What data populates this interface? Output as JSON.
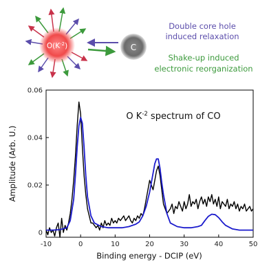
{
  "schematic": {
    "atom_o_label": "O",
    "atom_o_sup": "(K",
    "atom_o_sup2": "-2",
    "atom_o_close": ")",
    "atom_c_label": "C",
    "legend_relaxation_line1": "Double core hole",
    "legend_relaxation_line2": "induced relaxation",
    "legend_shakeup_line1": "Shake-up induced",
    "legend_shakeup_line2": "electronic reorganization",
    "colors": {
      "relaxation": "#5b4dab",
      "shakeup": "#3c9a3c",
      "red_arrow": "#c8324a",
      "o_atom": "#f04a4a",
      "c_atom": "#6b6b6b"
    }
  },
  "chart_data": {
    "type": "line",
    "title": "O K",
    "title_sup": "-2",
    "title_rest": " spectrum of  CO",
    "xlabel": "Binding energy - DCIP (eV)",
    "ylabel": "Amplitude (Arb. U.)",
    "xlim": [
      -10,
      50
    ],
    "ylim": [
      -0.002,
      0.06
    ],
    "xticks": [
      -10,
      0,
      10,
      20,
      30,
      40,
      50
    ],
    "yticks": [
      0,
      0.02,
      0.04,
      0.06
    ],
    "ytick_labels": [
      "0",
      "0.02",
      "0.04",
      "0.06"
    ],
    "grid": false,
    "series": [
      {
        "color": "#000000",
        "x": [
          -10,
          -9.5,
          -9,
          -8.5,
          -8,
          -7.5,
          -7,
          -6.5,
          -6,
          -5.5,
          -5,
          -4.5,
          -4,
          -3.5,
          -3,
          -2.5,
          -2,
          -1.5,
          -1,
          -0.5,
          0,
          0.5,
          1,
          1.5,
          2,
          2.5,
          3,
          3.5,
          4,
          4.5,
          5,
          5.5,
          6,
          6.5,
          7,
          7.5,
          8,
          8.5,
          9,
          9.5,
          10,
          10.5,
          11,
          11.5,
          12,
          12.5,
          13,
          13.5,
          14,
          14.5,
          15,
          15.5,
          16,
          16.5,
          17,
          17.5,
          18,
          18.5,
          19,
          19.5,
          20,
          20.5,
          21,
          21.5,
          22,
          22.5,
          23,
          23.5,
          24,
          24.5,
          25,
          25.5,
          26,
          26.5,
          27,
          27.5,
          28,
          28.5,
          29,
          29.5,
          30,
          30.5,
          31,
          31.5,
          32,
          32.5,
          33,
          33.5,
          34,
          34.5,
          35,
          35.5,
          36,
          36.5,
          37,
          37.5,
          38,
          38.5,
          39,
          39.5,
          40,
          40.5,
          41,
          41.5,
          42,
          42.5,
          43,
          43.5,
          44,
          44.5,
          45,
          45.5,
          46,
          46.5,
          47,
          47.5,
          48,
          48.5,
          49,
          49.5,
          50
        ],
        "y": [
          0.001,
          -0.001,
          0.002,
          0.0,
          0.001,
          -0.0015,
          0.002,
          0.004,
          -0.002,
          0.006,
          0.0,
          0.003,
          0.001,
          0.004,
          0.008,
          0.014,
          0.022,
          0.032,
          0.045,
          0.055,
          0.05,
          0.036,
          0.024,
          0.016,
          0.01,
          0.007,
          0.004,
          0.004,
          0.003,
          0.002,
          0.003,
          0.001,
          0.004,
          0.002,
          0.005,
          0.003,
          0.004,
          0.003,
          0.006,
          0.004,
          0.005,
          0.004,
          0.006,
          0.005,
          0.006,
          0.007,
          0.005,
          0.006,
          0.007,
          0.005,
          0.004,
          0.006,
          0.005,
          0.007,
          0.006,
          0.008,
          0.007,
          0.01,
          0.014,
          0.018,
          0.022,
          0.02,
          0.018,
          0.022,
          0.026,
          0.028,
          0.024,
          0.018,
          0.012,
          0.01,
          0.008,
          0.009,
          0.01,
          0.012,
          0.008,
          0.011,
          0.01,
          0.013,
          0.011,
          0.009,
          0.013,
          0.01,
          0.012,
          0.016,
          0.011,
          0.013,
          0.012,
          0.014,
          0.01,
          0.013,
          0.015,
          0.012,
          0.014,
          0.011,
          0.015,
          0.013,
          0.016,
          0.012,
          0.014,
          0.011,
          0.015,
          0.01,
          0.013,
          0.012,
          0.011,
          0.014,
          0.01,
          0.012,
          0.011,
          0.013,
          0.01,
          0.012,
          0.009,
          0.011,
          0.01,
          0.012,
          0.009,
          0.01,
          0.011,
          0.009,
          0.01
        ]
      },
      {
        "color": "#1a1acc",
        "x": [
          -10,
          -8,
          -6,
          -4,
          -3,
          -2,
          -1.5,
          -1,
          -0.5,
          0,
          0.5,
          1,
          1.5,
          2,
          3,
          4,
          6,
          8,
          10,
          12,
          14,
          16,
          17,
          18,
          19,
          20,
          20.5,
          21,
          21.5,
          22,
          22.5,
          23,
          23.5,
          24,
          25,
          26,
          28,
          30,
          32,
          34,
          35,
          36,
          37,
          38,
          39,
          40,
          41,
          42,
          44,
          46,
          48,
          50
        ],
        "y": [
          0.001,
          0.001,
          0.0012,
          0.002,
          0.005,
          0.014,
          0.024,
          0.036,
          0.045,
          0.0485,
          0.046,
          0.036,
          0.024,
          0.015,
          0.007,
          0.004,
          0.0025,
          0.002,
          0.002,
          0.002,
          0.0025,
          0.0035,
          0.0045,
          0.007,
          0.011,
          0.017,
          0.021,
          0.025,
          0.029,
          0.031,
          0.031,
          0.027,
          0.021,
          0.016,
          0.008,
          0.004,
          0.0025,
          0.002,
          0.002,
          0.0025,
          0.003,
          0.005,
          0.0068,
          0.0077,
          0.0075,
          0.0063,
          0.0045,
          0.003,
          0.0015,
          0.001,
          0.001,
          0.001
        ]
      }
    ]
  }
}
